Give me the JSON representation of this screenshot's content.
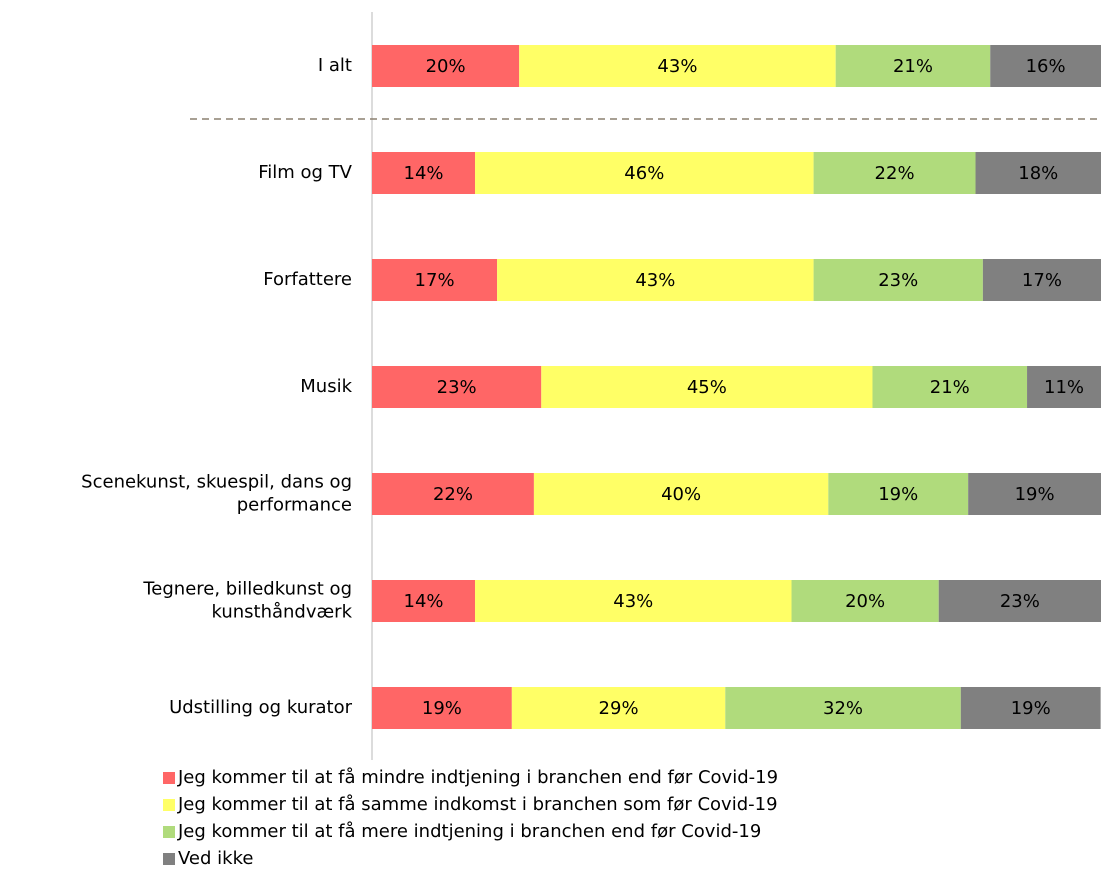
{
  "chart_data": {
    "type": "stacked_barh",
    "categories": [
      [
        "I alt"
      ],
      [
        "Film og TV"
      ],
      [
        "Forfattere"
      ],
      [
        "Musik"
      ],
      [
        "Scenekunst, skuespil, dans og",
        "performance"
      ],
      [
        "Tegnere, billedkunst og",
        "kunsthåndværk"
      ],
      [
        "Udstilling og kurator"
      ]
    ],
    "xlim": [
      0,
      100
    ],
    "series": [
      {
        "name": "Jeg kommer til at få mindre indtjening i branchen end før Covid-19",
        "color": "#ff6666",
        "values": [
          20,
          14,
          17,
          23,
          22,
          14,
          19
        ],
        "value_labels": [
          "20%",
          "14%",
          "17%",
          "23%",
          "22%",
          "14%",
          "19%"
        ]
      },
      {
        "name": "Jeg kommer til at få samme indkomst i branchen som før Covid-19",
        "color": "#ffff66",
        "values": [
          43,
          46,
          43,
          45,
          40,
          43,
          29
        ],
        "value_labels": [
          "43%",
          "46%",
          "43%",
          "45%",
          "40%",
          "43%",
          "29%"
        ]
      },
      {
        "name": "Jeg kommer til at få mere indtjening i branchen end før Covid-19",
        "color": "#b0db7c",
        "values": [
          21,
          22,
          23,
          21,
          19,
          20,
          32
        ],
        "value_labels": [
          "21%",
          "22%",
          "23%",
          "21%",
          "19%",
          "20%",
          "32%"
        ]
      },
      {
        "name": "Ved ikke",
        "color": "#808080",
        "values": [
          16,
          18,
          17,
          11,
          19,
          23,
          19
        ],
        "value_labels": [
          "16%",
          "18%",
          "17%",
          "11%",
          "19%",
          "23%",
          "19%"
        ]
      }
    ]
  }
}
